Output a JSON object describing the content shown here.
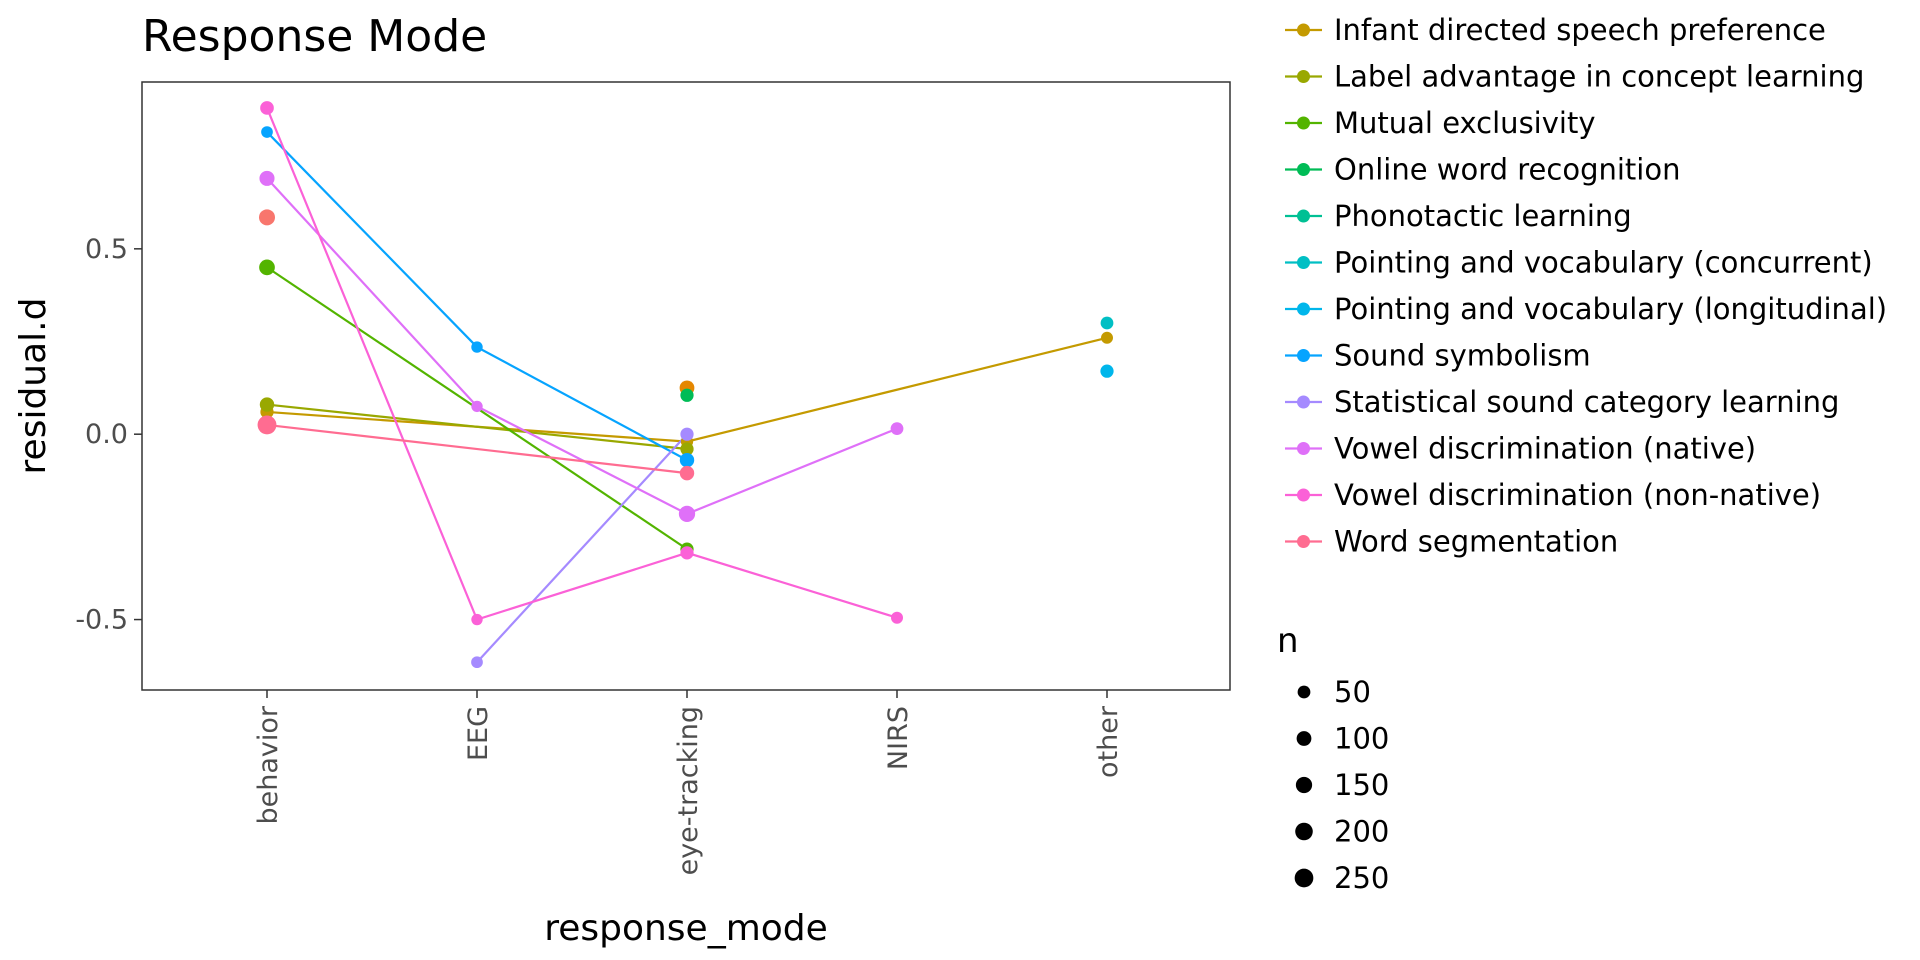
{
  "chart_data": {
    "type": "scatter",
    "title": "Response Mode",
    "xlabel": "response_mode",
    "ylabel": "residual.d",
    "categories": [
      "behavior",
      "EEG",
      "eye-tracking",
      "NIRS",
      "other"
    ],
    "ylim": [
      -0.69,
      0.95
    ],
    "yticks": [
      -0.5,
      0.0,
      0.5
    ],
    "ytick_labels": [
      "-0.5",
      "0.0",
      "0.5"
    ],
    "grid": false,
    "legend_position": "right",
    "size_legend_title": "n",
    "size_legend": [
      {
        "label": "50",
        "n": 50
      },
      {
        "label": "100",
        "n": 100
      },
      {
        "label": "150",
        "n": 150
      },
      {
        "label": "200",
        "n": 200
      },
      {
        "label": "250",
        "n": 250
      }
    ],
    "series": [
      {
        "name": "Infant directed speech preference",
        "color": "#C49A00",
        "points": [
          {
            "x": "behavior",
            "y": 0.06,
            "n": 60
          },
          {
            "x": "eye-tracking",
            "y": -0.02,
            "n": 40
          },
          {
            "x": "other",
            "y": 0.26,
            "n": 35
          }
        ]
      },
      {
        "name": "Label advantage in concept learning",
        "color": "#99A800",
        "points": [
          {
            "x": "behavior",
            "y": 0.08,
            "n": 90
          },
          {
            "x": "eye-tracking",
            "y": -0.04,
            "n": 60
          }
        ]
      },
      {
        "name": "Mutual exclusivity",
        "color": "#53B400",
        "points": [
          {
            "x": "behavior",
            "y": 0.45,
            "n": 130
          },
          {
            "x": "eye-tracking",
            "y": -0.31,
            "n": 60
          }
        ]
      },
      {
        "name": "Online word recognition",
        "color": "#00BC56",
        "points": [
          {
            "x": "eye-tracking",
            "y": 0.105,
            "n": 60
          }
        ]
      },
      {
        "name": "Phonotactic learning",
        "color": "#00C094",
        "points": []
      },
      {
        "name": "Pointing and vocabulary (concurrent)",
        "color": "#00BFC4",
        "points": [
          {
            "x": "other",
            "y": 0.3,
            "n": 50
          }
        ]
      },
      {
        "name": "Pointing and vocabulary (longitudinal)",
        "color": "#00B6EB",
        "points": [
          {
            "x": "other",
            "y": 0.17,
            "n": 60
          }
        ]
      },
      {
        "name": "Sound symbolism",
        "color": "#06A4FF",
        "points": [
          {
            "x": "behavior",
            "y": 0.815,
            "n": 30
          },
          {
            "x": "EEG",
            "y": 0.235,
            "n": 25
          },
          {
            "x": "eye-tracking",
            "y": -0.07,
            "n": 90
          }
        ]
      },
      {
        "name": "Statistical sound category learning",
        "color": "#A58AFF",
        "points": [
          {
            "x": "EEG",
            "y": -0.615,
            "n": 30
          },
          {
            "x": "eye-tracking",
            "y": 0.0,
            "n": 60
          }
        ]
      },
      {
        "name": "Vowel discrimination (native)",
        "color": "#DF70F8",
        "points": [
          {
            "x": "behavior",
            "y": 0.69,
            "n": 110
          },
          {
            "x": "EEG",
            "y": 0.075,
            "n": 25
          },
          {
            "x": "eye-tracking",
            "y": -0.215,
            "n": 150
          },
          {
            "x": "NIRS",
            "y": 0.015,
            "n": 50
          }
        ]
      },
      {
        "name": "Vowel discrimination (non-native)",
        "color": "#FB61D7",
        "points": [
          {
            "x": "behavior",
            "y": 0.88,
            "n": 70
          },
          {
            "x": "EEG",
            "y": -0.5,
            "n": 25
          },
          {
            "x": "eye-tracking",
            "y": -0.32,
            "n": 60
          },
          {
            "x": "NIRS",
            "y": -0.495,
            "n": 35
          }
        ]
      },
      {
        "name": "Word segmentation",
        "color": "#FF6C91",
        "points": [
          {
            "x": "behavior",
            "y": 0.025,
            "n": 260
          },
          {
            "x": "eye-tracking",
            "y": -0.105,
            "n": 90
          }
        ]
      }
    ],
    "unconnected_points": [
      {
        "x": "behavior",
        "y": 0.585,
        "n": 140,
        "color": "#F8766D"
      },
      {
        "x": "eye-tracking",
        "y": 0.125,
        "n": 100,
        "color": "#E58700"
      }
    ]
  }
}
